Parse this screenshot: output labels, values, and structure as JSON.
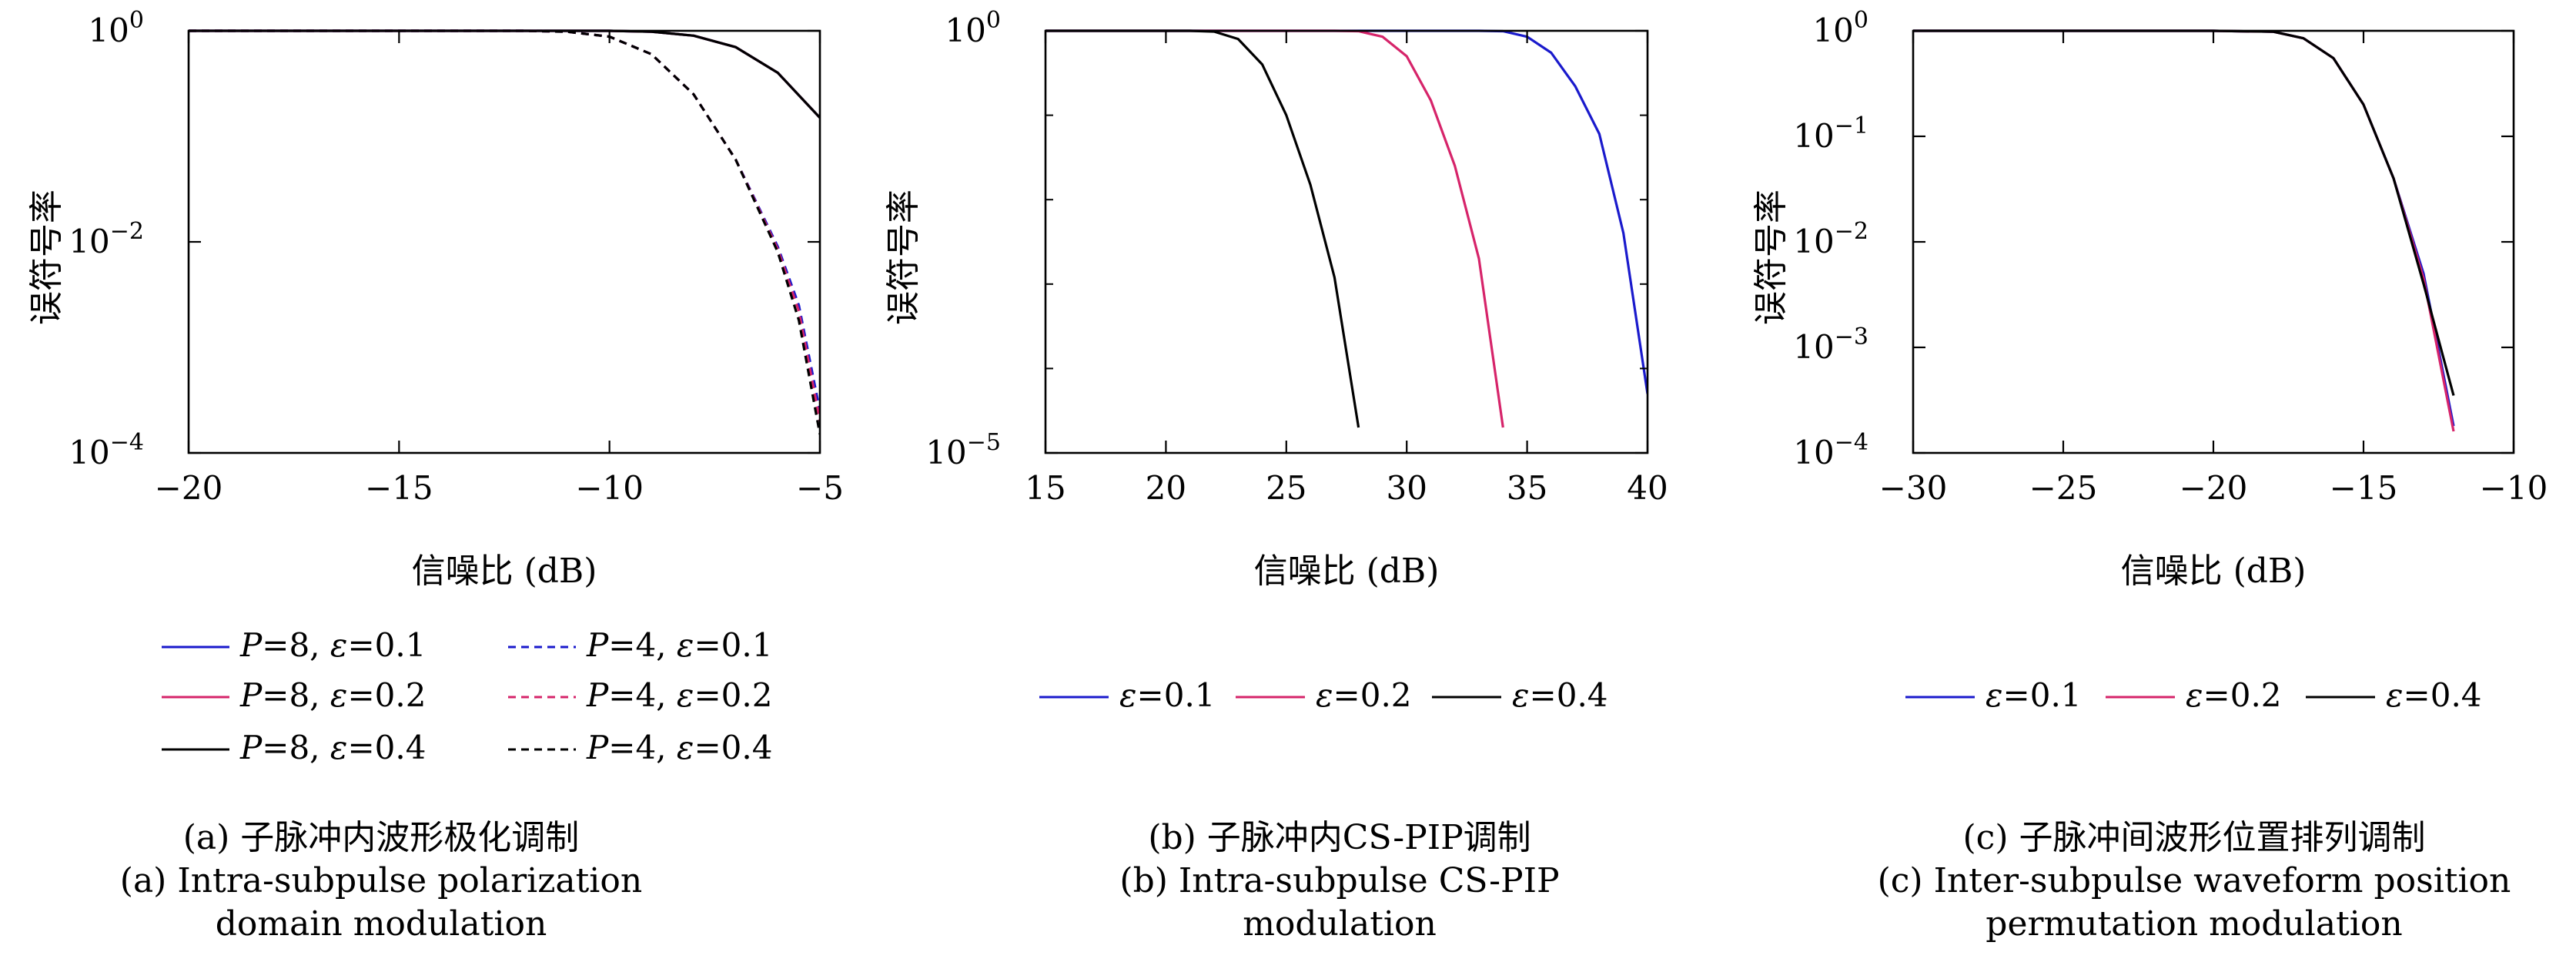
{
  "colors": {
    "blue": "#1a1acc",
    "red": "#d6246a",
    "black": "#000000"
  },
  "chart_data": [
    {
      "id": "a",
      "type": "line",
      "yscale": "log",
      "xlim": [
        -20,
        -5
      ],
      "ylim": [
        0.0001,
        1
      ],
      "xticks": [
        -20,
        -15,
        -10,
        -5
      ],
      "xtick_labels": [
        "−20",
        "−15",
        "−10",
        "−5"
      ],
      "yticks": [
        1,
        0.01,
        0.0001
      ],
      "ytick_labels": [
        {
          "base": "10",
          "exp": "0"
        },
        {
          "base": "10",
          "exp": "−2"
        },
        {
          "base": "10",
          "exp": "−4"
        }
      ],
      "xlabel": "信噪比 (dB)",
      "ylabel": "误符号率",
      "legend": {
        "layout": "two-column",
        "placement": "bottom"
      },
      "series": [
        {
          "name": "P=8, ε=0.1",
          "legend": {
            "var": "P",
            "vval": "=8, ",
            "eps": "ε",
            "eval": "=0.1"
          },
          "color": "#1a1acc",
          "dash": false,
          "x": [
            -20,
            -15,
            -10,
            -9,
            -8,
            -7,
            -6,
            -5
          ],
          "y": [
            1,
            1,
            1,
            0.98,
            0.9,
            0.7,
            0.4,
            0.15
          ]
        },
        {
          "name": "P=8, ε=0.2",
          "legend": {
            "var": "P",
            "vval": "=8, ",
            "eps": "ε",
            "eval": "=0.2"
          },
          "color": "#d6246a",
          "dash": false,
          "x": [
            -20,
            -15,
            -10,
            -9,
            -8,
            -7,
            -6,
            -5
          ],
          "y": [
            1,
            1,
            1,
            0.98,
            0.9,
            0.7,
            0.4,
            0.15
          ]
        },
        {
          "name": "P=8, ε=0.4",
          "legend": {
            "var": "P",
            "vval": "=8, ",
            "eps": "ε",
            "eval": "=0.4"
          },
          "color": "#000000",
          "dash": false,
          "x": [
            -20,
            -15,
            -10,
            -9,
            -8,
            -7,
            -6,
            -5
          ],
          "y": [
            1,
            1,
            1,
            0.98,
            0.9,
            0.7,
            0.4,
            0.15
          ]
        },
        {
          "name": "P=4, ε=0.1",
          "legend": {
            "var": "P",
            "vval": "=4, ",
            "eps": "ε",
            "eval": "=0.1"
          },
          "color": "#1a1acc",
          "dash": true,
          "x": [
            -20,
            -15,
            -12,
            -11,
            -10,
            -9,
            -8,
            -7,
            -6,
            -5.5,
            -5
          ],
          "y": [
            1,
            1,
            1,
            0.98,
            0.88,
            0.6,
            0.25,
            0.06,
            0.009,
            0.0025,
            0.00025
          ]
        },
        {
          "name": "P=4, ε=0.2",
          "legend": {
            "var": "P",
            "vval": "=4, ",
            "eps": "ε",
            "eval": "=0.2"
          },
          "color": "#d6246a",
          "dash": true,
          "x": [
            -20,
            -15,
            -12,
            -11,
            -10,
            -9,
            -8,
            -7,
            -6,
            -5.5,
            -5
          ],
          "y": [
            1,
            1,
            1,
            0.98,
            0.88,
            0.6,
            0.25,
            0.06,
            0.0085,
            0.0022,
            0.0002
          ]
        },
        {
          "name": "P=4, ε=0.4",
          "legend": {
            "var": "P",
            "vval": "=4, ",
            "eps": "ε",
            "eval": "=0.4"
          },
          "color": "#000000",
          "dash": true,
          "x": [
            -20,
            -15,
            -12,
            -11,
            -10,
            -9,
            -8,
            -7,
            -6,
            -5.5,
            -5
          ],
          "y": [
            1,
            1,
            1,
            0.98,
            0.88,
            0.6,
            0.25,
            0.06,
            0.008,
            0.0018,
            0.00015
          ]
        }
      ],
      "caption_zh": "(a) 子脉冲内波形极化调制",
      "caption_en": [
        "(a) Intra-subpulse polarization",
        "domain modulation"
      ]
    },
    {
      "id": "b",
      "type": "line",
      "yscale": "log",
      "xlim": [
        15,
        40
      ],
      "ylim": [
        1e-05,
        1
      ],
      "xticks": [
        15,
        20,
        25,
        30,
        35,
        40
      ],
      "xtick_labels": [
        "15",
        "20",
        "25",
        "30",
        "35",
        "40"
      ],
      "yticks": [
        1,
        1e-05
      ],
      "ytick_labels": [
        {
          "base": "10",
          "exp": "0"
        },
        {
          "base": "10",
          "exp": "−5"
        }
      ],
      "xlabel": "信噪比 (dB)",
      "ylabel": "误符号率",
      "legend": {
        "layout": "one-row",
        "placement": "bottom"
      },
      "series": [
        {
          "name": "ε=0.1",
          "legend": {
            "eps": "ε",
            "eval": "=0.1"
          },
          "color": "#1a1acc",
          "dash": false,
          "x": [
            15,
            30,
            33,
            34,
            35,
            36,
            37,
            38,
            39,
            40
          ],
          "y": [
            1,
            1,
            1,
            0.99,
            0.85,
            0.55,
            0.22,
            0.06,
            0.004,
            5e-05
          ]
        },
        {
          "name": "ε=0.2",
          "legend": {
            "eps": "ε",
            "eval": "=0.2"
          },
          "color": "#d6246a",
          "dash": false,
          "x": [
            15,
            27,
            28,
            29,
            30,
            31,
            32,
            33,
            34
          ],
          "y": [
            1,
            1,
            0.99,
            0.85,
            0.5,
            0.15,
            0.025,
            0.002,
            2e-05
          ]
        },
        {
          "name": "ε=0.4",
          "legend": {
            "eps": "ε",
            "eval": "=0.4"
          },
          "color": "#000000",
          "dash": false,
          "x": [
            15,
            20,
            21,
            22,
            23,
            24,
            25,
            26,
            27,
            28
          ],
          "y": [
            1,
            1,
            1,
            0.98,
            0.8,
            0.4,
            0.1,
            0.015,
            0.0012,
            2e-05
          ]
        }
      ],
      "caption_zh": "(b) 子脉冲内CS-PIP调制",
      "caption_en": [
        "(b) Intra-subpulse CS-PIP",
        "modulation"
      ]
    },
    {
      "id": "c",
      "type": "line",
      "yscale": "log",
      "xlim": [
        -30,
        -10
      ],
      "ylim": [
        0.0001,
        1
      ],
      "xticks": [
        -30,
        -25,
        -20,
        -15,
        -10
      ],
      "xtick_labels": [
        "−30",
        "−25",
        "−20",
        "−15",
        "−10"
      ],
      "yticks": [
        1,
        0.1,
        0.01,
        0.001,
        0.0001
      ],
      "ytick_labels": [
        {
          "base": "10",
          "exp": "0"
        },
        {
          "base": "10",
          "exp": "−1"
        },
        {
          "base": "10",
          "exp": "−2"
        },
        {
          "base": "10",
          "exp": "−3"
        },
        {
          "base": "10",
          "exp": "−4"
        }
      ],
      "xlabel": "信噪比 (dB)",
      "ylabel": "误符号率",
      "legend": {
        "layout": "one-row",
        "placement": "bottom"
      },
      "series": [
        {
          "name": "ε=0.1",
          "legend": {
            "eps": "ε",
            "eval": "=0.1"
          },
          "color": "#1a1acc",
          "dash": false,
          "x": [
            -30,
            -20,
            -18,
            -17,
            -16,
            -15,
            -14,
            -13,
            -12
          ],
          "y": [
            1,
            1,
            0.98,
            0.85,
            0.55,
            0.2,
            0.04,
            0.005,
            0.00018
          ]
        },
        {
          "name": "ε=0.2",
          "legend": {
            "eps": "ε",
            "eval": "=0.2"
          },
          "color": "#d6246a",
          "dash": false,
          "x": [
            -30,
            -20,
            -18,
            -17,
            -16,
            -15,
            -14,
            -13,
            -12
          ],
          "y": [
            1,
            1,
            0.98,
            0.85,
            0.55,
            0.2,
            0.04,
            0.0045,
            0.00016
          ]
        },
        {
          "name": "ε=0.4",
          "legend": {
            "eps": "ε",
            "eval": "=0.4"
          },
          "color": "#000000",
          "dash": false,
          "x": [
            -30,
            -20,
            -18,
            -17,
            -16,
            -15,
            -14,
            -13,
            -12
          ],
          "y": [
            1,
            1,
            0.98,
            0.85,
            0.55,
            0.2,
            0.04,
            0.004,
            0.00035
          ]
        }
      ],
      "caption_zh": "(c) 子脉冲间波形位置排列调制",
      "caption_en": [
        "(c) Inter-subpulse waveform position",
        "permutation modulation"
      ]
    }
  ]
}
